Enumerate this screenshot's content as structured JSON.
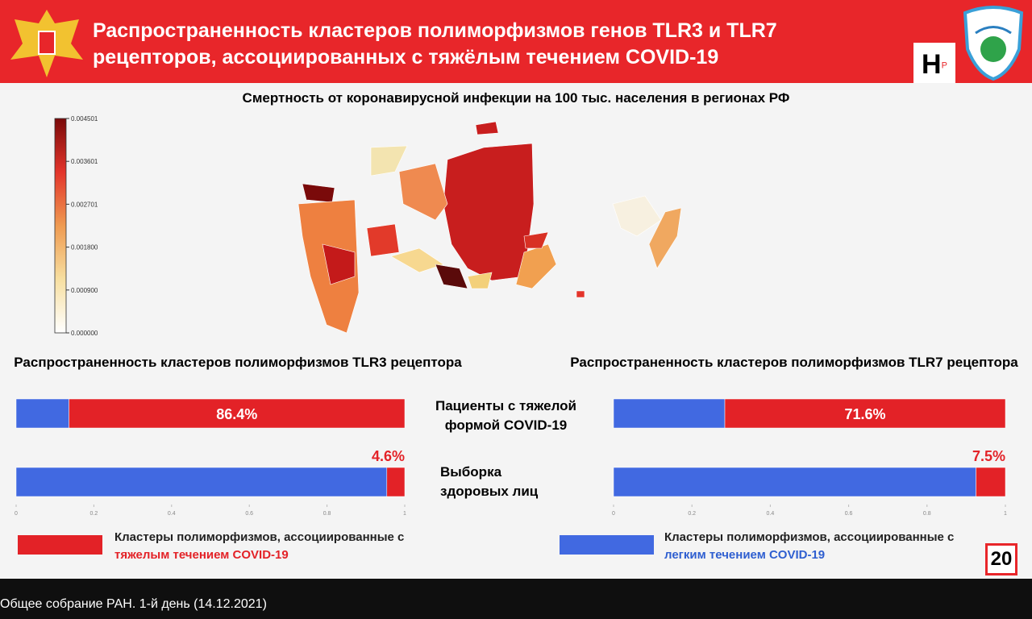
{
  "header": {
    "title": "Распространенность кластеров полиморфизмов генов TLR3 и TLR7 рецепторов, ассоциированных с тяжёлым течением COVID-19",
    "logo": "Н",
    "logo_sup": "Р",
    "slide_number": "20"
  },
  "map": {
    "title": "Смертность от коронавирусной инфекции на 100 тыс. населения в регионах РФ",
    "colorbar_lim": [
      0,
      0.004501
    ],
    "colorbar_ticks": [
      {
        "value": 0,
        "label": "0.000000"
      },
      {
        "value": 0.0009,
        "label": "0.000900"
      },
      {
        "value": 0.0018,
        "label": "0.001800"
      },
      {
        "value": 0.002701,
        "label": "0.002701"
      },
      {
        "value": 0.003601,
        "label": "0.003601"
      },
      {
        "value": 0.004501,
        "label": "0.004501"
      }
    ]
  },
  "chart_data": [
    {
      "type": "bar",
      "orientation": "horizontal",
      "stacked": true,
      "title": "Распространенность кластеров полиморфизмов TLR3 рецептора",
      "categories": [
        "Пациенты с тяжелой формой COVID-19",
        "Выборка здоровых лиц"
      ],
      "xlim": [
        0,
        1
      ],
      "xticks": [
        0,
        0.2,
        0.4,
        0.6,
        0.8,
        1
      ],
      "series": [
        {
          "color": "#4169e1",
          "values": [
            0.136,
            0.954
          ]
        },
        {
          "name": "Кластеры полиморфизмов, ассоциированные с тяжелым течением COVID-19",
          "color": "#e32227",
          "values": [
            0.864,
            0.046
          ],
          "value_labels": [
            "86.4%",
            "4.6%"
          ]
        }
      ]
    },
    {
      "type": "bar",
      "orientation": "horizontal",
      "stacked": true,
      "title": "Распространенность кластеров полиморфизмов TLR7 рецептора",
      "xlim": [
        0,
        1
      ],
      "xticks": [
        0,
        0.2,
        0.4,
        0.6,
        0.8,
        1
      ],
      "series": [
        {
          "name": "Кластеры полиморфизмов, ассоциированные с легким течением COVID-19",
          "color": "#4169e1",
          "values": [
            0.284,
            0.925
          ]
        },
        {
          "color": "#e32227",
          "values": [
            0.716,
            0.075
          ],
          "value_labels": [
            "71.6%",
            "7.5%"
          ]
        }
      ]
    }
  ],
  "caption": "Общее собрание РАН. 1-й день (14.12.2021)"
}
